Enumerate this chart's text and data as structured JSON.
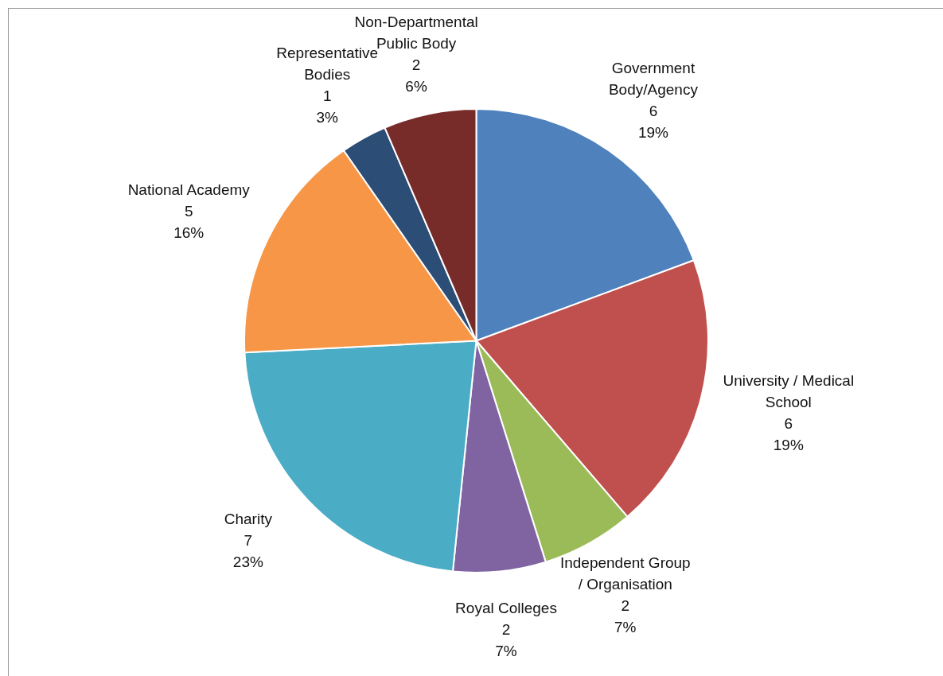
{
  "chart_data": {
    "type": "pie",
    "categories": [
      "Government Body/Agency",
      "University / Medical School",
      "Independent Group / Organisation",
      "Royal Colleges",
      "Charity",
      "National Academy",
      "Representative Bodies",
      "Non-Departmental Public Body"
    ],
    "values": [
      6,
      6,
      2,
      2,
      7,
      5,
      1,
      2
    ],
    "value_labels": [
      "6\n19%",
      "6\n19%",
      "2\n7%",
      "2\n7%",
      "7\n23%",
      "5\n16%",
      "1\n3%",
      "2\n6%"
    ],
    "colors": [
      "#4f81bd",
      "#c0504d",
      "#9bbb59",
      "#8064a2",
      "#4bacc6",
      "#f79646",
      "#2c4d75",
      "#772c2a"
    ],
    "legend": false
  }
}
